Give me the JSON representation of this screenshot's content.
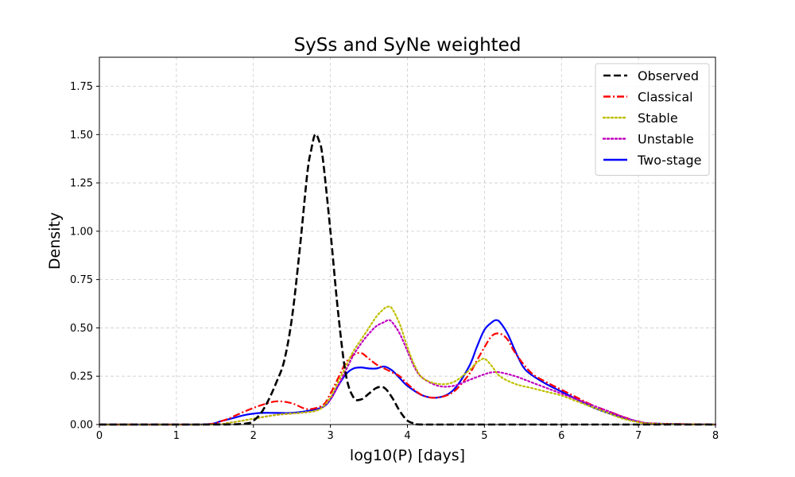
{
  "chart_data": {
    "type": "line",
    "title": "SySs and SyNe weighted",
    "xlabel": "log10(P) [days]",
    "ylabel": "Density",
    "xlim": [
      0,
      8
    ],
    "ylim": [
      0,
      1.9
    ],
    "xticks": [
      "0",
      "1",
      "2",
      "3",
      "4",
      "5",
      "6",
      "7",
      "8"
    ],
    "yticks": [
      "0.00",
      "0.25",
      "0.50",
      "0.75",
      "1.00",
      "1.25",
      "1.50",
      "1.75"
    ],
    "grid": true,
    "legend_position": "top-right",
    "legend": [
      {
        "label": "Observed",
        "color": "#000000",
        "style": "dashed"
      },
      {
        "label": "Classical",
        "color": "#ff0000",
        "style": "dashdot"
      },
      {
        "label": "Stable",
        "color": "#bfbf00",
        "style": "dotted"
      },
      {
        "label": "Unstable",
        "color": "#bf00bf",
        "style": "dotted"
      },
      {
        "label": "Two-stage",
        "color": "#0000ff",
        "style": "solid"
      }
    ],
    "series": [
      {
        "name": "Observed",
        "color": "#000000",
        "style": "dashed",
        "x": [
          0,
          1.5,
          1.9,
          2.0,
          2.1,
          2.2,
          2.3,
          2.4,
          2.5,
          2.6,
          2.7,
          2.75,
          2.8,
          2.85,
          2.9,
          3.0,
          3.1,
          3.2,
          3.3,
          3.4,
          3.5,
          3.6,
          3.7,
          3.8,
          3.9,
          4.0,
          4.1,
          4.2,
          5.0,
          6.0,
          7.0,
          8.0
        ],
        "y": [
          0,
          0,
          0.005,
          0.02,
          0.06,
          0.13,
          0.22,
          0.33,
          0.55,
          0.9,
          1.3,
          1.42,
          1.5,
          1.47,
          1.38,
          1.0,
          0.58,
          0.26,
          0.14,
          0.13,
          0.16,
          0.19,
          0.19,
          0.14,
          0.07,
          0.02,
          0.005,
          0,
          0,
          0,
          0,
          0
        ]
      },
      {
        "name": "Classical",
        "color": "#ff0000",
        "style": "dashdot",
        "x": [
          0,
          1.3,
          1.6,
          1.9,
          2.1,
          2.3,
          2.5,
          2.7,
          2.9,
          3.0,
          3.1,
          3.2,
          3.3,
          3.4,
          3.5,
          3.6,
          3.7,
          3.8,
          3.9,
          4.0,
          4.2,
          4.4,
          4.6,
          4.8,
          4.9,
          5.0,
          5.1,
          5.2,
          5.3,
          5.4,
          5.6,
          5.8,
          6.0,
          6.2,
          6.4,
          6.6,
          6.8,
          7.0,
          7.2,
          8.0
        ],
        "y": [
          0,
          0,
          0.02,
          0.07,
          0.1,
          0.12,
          0.11,
          0.08,
          0.1,
          0.16,
          0.24,
          0.32,
          0.36,
          0.37,
          0.34,
          0.31,
          0.29,
          0.27,
          0.25,
          0.21,
          0.15,
          0.14,
          0.17,
          0.26,
          0.33,
          0.4,
          0.46,
          0.47,
          0.44,
          0.37,
          0.27,
          0.22,
          0.18,
          0.14,
          0.1,
          0.07,
          0.04,
          0.015,
          0.005,
          0
        ]
      },
      {
        "name": "Stable",
        "color": "#bfbf00",
        "style": "dotted",
        "x": [
          0,
          1.4,
          1.7,
          2.0,
          2.3,
          2.6,
          2.8,
          2.9,
          3.0,
          3.1,
          3.2,
          3.3,
          3.4,
          3.5,
          3.6,
          3.7,
          3.75,
          3.8,
          3.9,
          4.0,
          4.1,
          4.2,
          4.4,
          4.6,
          4.8,
          4.9,
          5.0,
          5.1,
          5.2,
          5.4,
          5.6,
          5.8,
          6.0,
          6.2,
          6.4,
          6.6,
          6.8,
          7.0,
          7.2,
          8.0
        ],
        "y": [
          0,
          0,
          0.01,
          0.03,
          0.05,
          0.06,
          0.07,
          0.09,
          0.14,
          0.22,
          0.3,
          0.38,
          0.44,
          0.5,
          0.56,
          0.6,
          0.61,
          0.6,
          0.52,
          0.4,
          0.3,
          0.24,
          0.21,
          0.22,
          0.28,
          0.32,
          0.34,
          0.3,
          0.25,
          0.21,
          0.19,
          0.17,
          0.15,
          0.12,
          0.09,
          0.06,
          0.03,
          0.012,
          0.004,
          0
        ]
      },
      {
        "name": "Unstable",
        "color": "#bf00bf",
        "style": "dotted",
        "x": [
          0,
          1.4,
          1.7,
          2.0,
          2.3,
          2.6,
          2.8,
          2.9,
          3.0,
          3.1,
          3.2,
          3.3,
          3.4,
          3.5,
          3.6,
          3.7,
          3.75,
          3.8,
          3.9,
          4.0,
          4.1,
          4.2,
          4.4,
          4.6,
          4.8,
          5.0,
          5.1,
          5.2,
          5.4,
          5.6,
          5.8,
          6.0,
          6.2,
          6.4,
          6.6,
          6.8,
          7.0,
          7.2,
          8.0
        ],
        "y": [
          0,
          0,
          0.01,
          0.03,
          0.05,
          0.06,
          0.07,
          0.09,
          0.13,
          0.2,
          0.28,
          0.36,
          0.42,
          0.47,
          0.51,
          0.53,
          0.54,
          0.53,
          0.47,
          0.38,
          0.29,
          0.24,
          0.2,
          0.2,
          0.23,
          0.26,
          0.27,
          0.27,
          0.25,
          0.22,
          0.19,
          0.16,
          0.13,
          0.1,
          0.07,
          0.04,
          0.015,
          0.005,
          0
        ]
      },
      {
        "name": "Two-stage",
        "color": "#0000ff",
        "style": "solid",
        "x": [
          0,
          1.3,
          1.6,
          1.9,
          2.1,
          2.3,
          2.5,
          2.7,
          2.9,
          3.0,
          3.1,
          3.2,
          3.3,
          3.4,
          3.5,
          3.6,
          3.7,
          3.8,
          3.9,
          4.0,
          4.2,
          4.4,
          4.6,
          4.8,
          4.9,
          5.0,
          5.1,
          5.15,
          5.2,
          5.3,
          5.4,
          5.5,
          5.6,
          5.8,
          6.0,
          6.2,
          6.4,
          6.6,
          6.8,
          7.0,
          7.2,
          8.0
        ],
        "y": [
          0,
          0,
          0.02,
          0.05,
          0.06,
          0.06,
          0.06,
          0.07,
          0.09,
          0.13,
          0.2,
          0.26,
          0.29,
          0.295,
          0.29,
          0.29,
          0.3,
          0.28,
          0.24,
          0.2,
          0.15,
          0.14,
          0.18,
          0.3,
          0.4,
          0.49,
          0.53,
          0.54,
          0.53,
          0.47,
          0.38,
          0.3,
          0.26,
          0.21,
          0.17,
          0.13,
          0.09,
          0.06,
          0.035,
          0.015,
          0.005,
          0
        ]
      }
    ]
  }
}
